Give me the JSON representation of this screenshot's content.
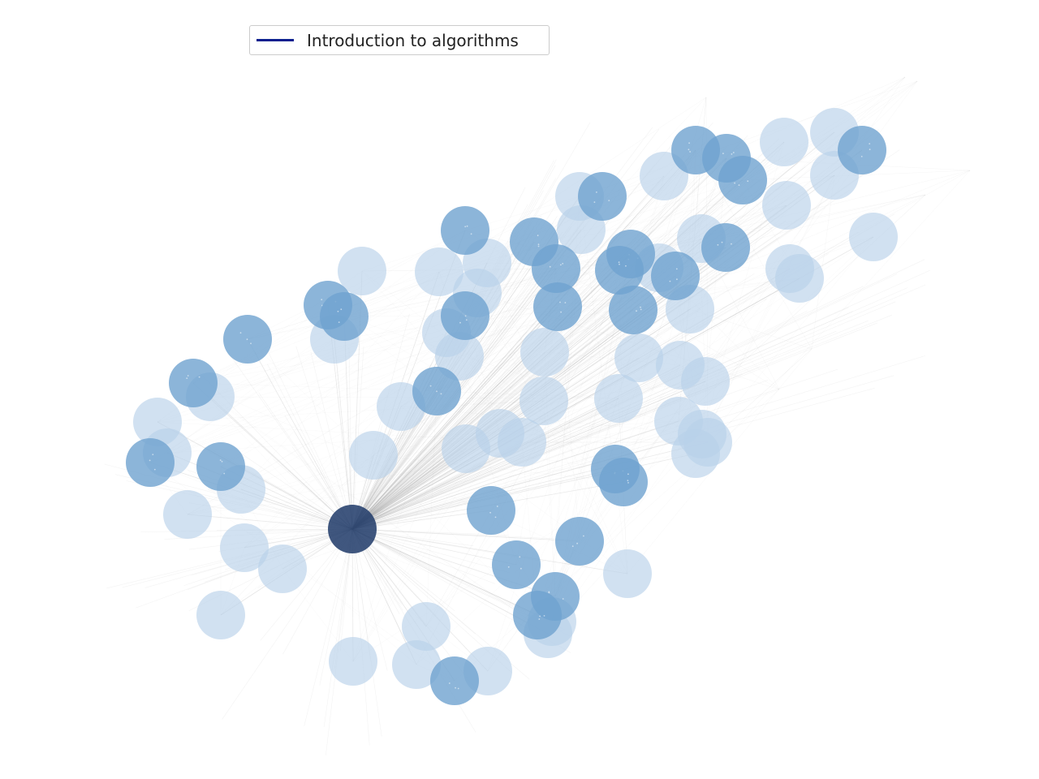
{
  "legend": {
    "label": "Introduction to algorithms",
    "color": "#0a1f8f"
  },
  "colors": {
    "edge": "#9a9a9a",
    "hub_node": "#1f3a68",
    "strong_node": "#6fa3d0",
    "weak_node": "#b9d1ea",
    "background": "#ffffff"
  },
  "graph": {
    "hub": "n0",
    "node_count": 85
  }
}
